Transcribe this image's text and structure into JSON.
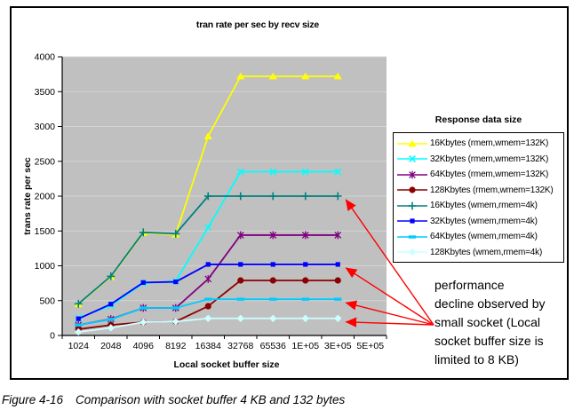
{
  "figure": {
    "caption_label": "Figure 4-16",
    "caption_text": "Comparison with socket buffer 4 KB and 132 bytes"
  },
  "chart_data": {
    "type": "line",
    "title": "tran rate per sec by recv size",
    "xlabel": "Local socket buffer size",
    "ylabel": "trans rate per sec",
    "legend_title": "Response data size",
    "legend_position": "right",
    "grid": true,
    "plot_bg": "#c0c0c0",
    "ylim": [
      0,
      4000
    ],
    "ytick_step": 500,
    "categories": [
      "1024",
      "2048",
      "4096",
      "8192",
      "16384",
      "32768",
      "65536",
      "1E+05",
      "3E+05",
      "5E+05"
    ],
    "series": [
      {
        "name": "16Kbytes (rmem,wmem=132K)",
        "color": "#ffff00",
        "marker": "triangle",
        "values": [
          450,
          840,
          1470,
          1450,
          2860,
          3720,
          3720,
          3720,
          3720,
          null
        ]
      },
      {
        "name": "32Kbytes (rmem,wmem=132K)",
        "color": "#00ffff",
        "marker": "x",
        "values": [
          250,
          430,
          750,
          780,
          1550,
          2350,
          2350,
          2350,
          2350,
          null
        ]
      },
      {
        "name": "64Kbytes (rmem,wmem=132K)",
        "color": "#800080",
        "marker": "star",
        "values": [
          150,
          235,
          395,
          395,
          810,
          1440,
          1440,
          1440,
          1440,
          null
        ]
      },
      {
        "name": "128Kbytes (rmem,wmem=132K)",
        "color": "#8b0000",
        "marker": "circle",
        "values": [
          90,
          150,
          190,
          200,
          420,
          790,
          790,
          790,
          790,
          null
        ]
      },
      {
        "name": "16Kbytes (wmem,rmem=4k)",
        "color": "#008080",
        "marker": "plus",
        "values": [
          455,
          850,
          1480,
          1460,
          2000,
          2000,
          2000,
          2000,
          2000,
          null
        ]
      },
      {
        "name": "32Kbytes (wmem,rmem=4k)",
        "color": "#0000ff",
        "marker": "square",
        "values": [
          240,
          450,
          760,
          770,
          1020,
          1020,
          1020,
          1020,
          1020,
          null
        ]
      },
      {
        "name": "64Kbytes (wmem,rmem=4k)",
        "color": "#00ccff",
        "marker": "dash",
        "values": [
          150,
          230,
          395,
          395,
          520,
          520,
          520,
          520,
          520,
          null
        ]
      },
      {
        "name": "128Kbytes (wmem,rmem=4k)",
        "color": "#ccffff",
        "marker": "diamond",
        "values": [
          50,
          110,
          190,
          200,
          245,
          245,
          245,
          245,
          245,
          null
        ]
      }
    ]
  },
  "annotation": {
    "lines": [
      "performance",
      "decline observed by",
      "small socket (Local",
      "socket buffer size is",
      "limited to 8 KB)"
    ],
    "arrow_color": "#ff0000",
    "arrow_targets": [
      {
        "category": "3E+05",
        "value": 2000
      },
      {
        "category": "3E+05",
        "value": 1020
      },
      {
        "category": "3E+05",
        "value": 520
      },
      {
        "category": "3E+05",
        "value": 245
      }
    ]
  }
}
